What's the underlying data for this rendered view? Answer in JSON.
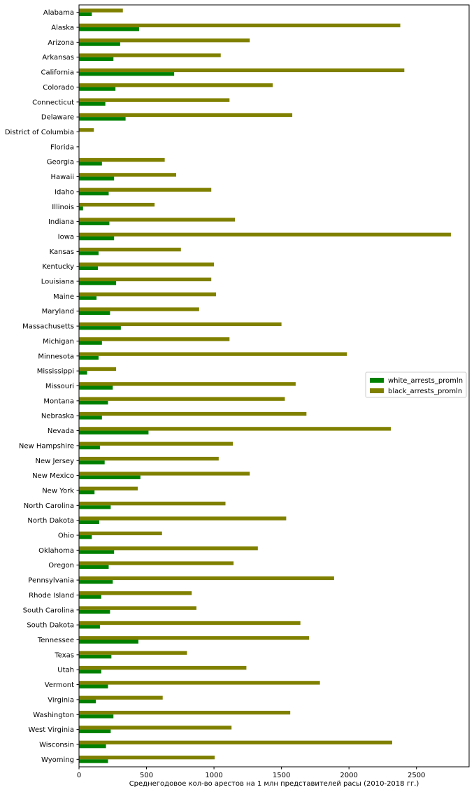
{
  "chart_data": {
    "type": "bar",
    "orientation": "horizontal",
    "xlabel": "Среднегодовое кол-во арестов на 1 млн представителей расы (2010-2018 гг.)",
    "ylabel": "",
    "xlim": [
      0,
      2890
    ],
    "xticks": [
      0,
      500,
      1000,
      1500,
      2000,
      2500
    ],
    "legend_position": "center-right",
    "grid": false,
    "categories": [
      "Alabama",
      "Alaska",
      "Arizona",
      "Arkansas",
      "California",
      "Colorado",
      "Connecticut",
      "Delaware",
      "District of Columbia",
      "Florida",
      "Georgia",
      "Hawaii",
      "Idaho",
      "Illinois",
      "Indiana",
      "Iowa",
      "Kansas",
      "Kentucky",
      "Louisiana",
      "Maine",
      "Maryland",
      "Massachusetts",
      "Michigan",
      "Minnesota",
      "Mississippi",
      "Missouri",
      "Montana",
      "Nebraska",
      "Nevada",
      "New Hampshire",
      "New Jersey",
      "New Mexico",
      "New York",
      "North Carolina",
      "North Dakota",
      "Ohio",
      "Oklahoma",
      "Oregon",
      "Pennsylvania",
      "Rhode Island",
      "South Carolina",
      "South Dakota",
      "Tennessee",
      "Texas",
      "Utah",
      "Vermont",
      "Virginia",
      "Washington",
      "West Virginia",
      "Wisconsin",
      "Wyoming"
    ],
    "series": [
      {
        "name": "white_arrests_promln",
        "color": "#008000",
        "values": [
          95,
          445,
          305,
          255,
          705,
          270,
          195,
          345,
          0,
          0,
          170,
          260,
          220,
          30,
          225,
          260,
          145,
          140,
          275,
          130,
          230,
          310,
          170,
          145,
          60,
          250,
          215,
          170,
          515,
          155,
          190,
          455,
          115,
          235,
          150,
          95,
          260,
          220,
          250,
          165,
          230,
          155,
          440,
          240,
          165,
          215,
          125,
          255,
          235,
          200,
          215
        ]
      },
      {
        "name": "black_arrests_promln",
        "color": "#808000",
        "values": [
          325,
          2380,
          1265,
          1050,
          2410,
          1435,
          1115,
          1580,
          110,
          0,
          635,
          720,
          980,
          560,
          1155,
          2755,
          755,
          1000,
          980,
          1015,
          890,
          1500,
          1115,
          1985,
          275,
          1605,
          1525,
          1685,
          2310,
          1140,
          1035,
          1265,
          435,
          1085,
          1535,
          615,
          1325,
          1145,
          1890,
          835,
          870,
          1640,
          1705,
          800,
          1240,
          1785,
          620,
          1565,
          1130,
          2320,
          1005
        ]
      }
    ]
  }
}
